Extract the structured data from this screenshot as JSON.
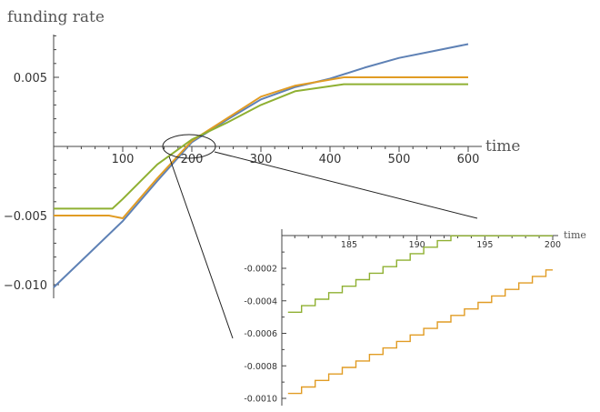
{
  "chart_data": [
    {
      "type": "line",
      "title": "",
      "xlabel": "time",
      "ylabel": "funding rate",
      "xlim": [
        0,
        600
      ],
      "ylim": [
        -0.0105,
        0.0082
      ],
      "xticks": [
        100,
        200,
        300,
        400,
        500,
        600
      ],
      "xtick_labels": [
        "100",
        "200",
        "300",
        "400",
        "500",
        "600"
      ],
      "yticks": [
        -0.01,
        -0.005,
        0.005
      ],
      "ytick_labels": [
        "−0.010",
        "−0.005",
        "0.005"
      ],
      "grid": false,
      "series": [
        {
          "color": "#5e81b5",
          "points": [
            [
              0,
              -0.0102
            ],
            [
              50,
              -0.0078
            ],
            [
              100,
              -0.0054
            ],
            [
              150,
              -0.0025
            ],
            [
              200,
              0.0003
            ],
            [
              250,
              0.0019
            ],
            [
              300,
              0.0034
            ],
            [
              350,
              0.0043
            ],
            [
              400,
              0.0049
            ],
            [
              450,
              0.0057
            ],
            [
              500,
              0.0064
            ],
            [
              550,
              0.0069
            ],
            [
              600,
              0.0074
            ]
          ]
        },
        {
          "color": "#e19c24",
          "points": [
            [
              0,
              -0.005
            ],
            [
              80,
              -0.005
            ],
            [
              100,
              -0.0052
            ],
            [
              150,
              -0.0023
            ],
            [
              200,
              0.0004
            ],
            [
              250,
              0.002
            ],
            [
              300,
              0.0036
            ],
            [
              350,
              0.0044
            ],
            [
              420,
              0.005
            ],
            [
              600,
              0.005
            ]
          ]
        },
        {
          "color": "#8fb032",
          "points": [
            [
              0,
              -0.0045
            ],
            [
              85,
              -0.0045
            ],
            [
              100,
              -0.0038
            ],
            [
              150,
              -0.0013
            ],
            [
              200,
              0.0005
            ],
            [
              250,
              0.0017
            ],
            [
              300,
              0.003
            ],
            [
              350,
              0.004
            ],
            [
              420,
              0.0045
            ],
            [
              600,
              0.0045
            ]
          ]
        }
      ]
    },
    {
      "type": "line",
      "title": "",
      "xlabel": "time",
      "ylabel": "",
      "xlim": [
        180.5,
        200
      ],
      "ylim": [
        -0.00102,
        0
      ],
      "xticks": [
        185,
        190,
        195,
        200
      ],
      "xtick_labels": [
        "185",
        "190",
        "195",
        "200"
      ],
      "yticks": [
        -0.0002,
        -0.0004,
        -0.0006,
        -0.0008,
        -0.001
      ],
      "ytick_labels": [
        "-0.0002",
        "-0.0004",
        "-0.0006",
        "-0.0008",
        "-0.0010"
      ],
      "grid": false,
      "series": [
        {
          "color": "#8fb032",
          "step": true,
          "points": [
            [
              180.5,
              -0.00047
            ],
            [
              181.5,
              -0.00043
            ],
            [
              182.5,
              -0.00039
            ],
            [
              183.5,
              -0.00035
            ],
            [
              184.5,
              -0.00031
            ],
            [
              185.5,
              -0.00027
            ],
            [
              186.5,
              -0.00023
            ],
            [
              187.5,
              -0.00019
            ],
            [
              188.5,
              -0.00015
            ],
            [
              189.5,
              -0.00011
            ],
            [
              190.5,
              -7e-05
            ],
            [
              191.5,
              -3e-05
            ],
            [
              192.5,
              0.0
            ],
            [
              200,
              0.0
            ]
          ]
        },
        {
          "color": "#e19c24",
          "step": true,
          "points": [
            [
              180.5,
              -0.00097
            ],
            [
              181.5,
              -0.00093
            ],
            [
              182.5,
              -0.00089
            ],
            [
              183.5,
              -0.00085
            ],
            [
              184.5,
              -0.00081
            ],
            [
              185.5,
              -0.00077
            ],
            [
              186.5,
              -0.00073
            ],
            [
              187.5,
              -0.00069
            ],
            [
              188.5,
              -0.00065
            ],
            [
              189.5,
              -0.00061
            ],
            [
              190.5,
              -0.00057
            ],
            [
              191.5,
              -0.00053
            ],
            [
              192.5,
              -0.00049
            ],
            [
              193.5,
              -0.00045
            ],
            [
              194.5,
              -0.00041
            ],
            [
              195.5,
              -0.00037
            ],
            [
              196.5,
              -0.00033
            ],
            [
              197.5,
              -0.00029
            ],
            [
              198.5,
              -0.00025
            ],
            [
              199.5,
              -0.00021
            ],
            [
              200,
              -0.00021
            ]
          ]
        }
      ]
    }
  ]
}
